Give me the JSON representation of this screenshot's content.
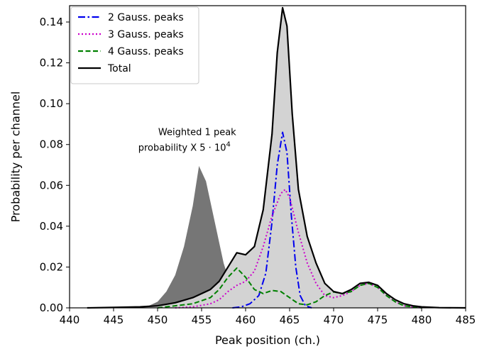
{
  "chart_data": {
    "type": "area",
    "title": "",
    "xlabel": "Peak position (ch.)",
    "ylabel": "Probability per channel",
    "xlim": [
      440,
      485
    ],
    "ylim": [
      0,
      0.148
    ],
    "xticks": [
      440,
      445,
      450,
      455,
      460,
      465,
      470,
      475,
      480,
      485
    ],
    "xtick_labels": [
      "440",
      "445",
      "450",
      "455",
      "460",
      "465",
      "470",
      "475",
      "480",
      "485"
    ],
    "yticks": [
      0.0,
      0.02,
      0.04,
      0.06,
      0.08,
      0.1,
      0.12,
      0.14
    ],
    "ytick_labels": [
      "0.00",
      "0.02",
      "0.04",
      "0.06",
      "0.08",
      "0.10",
      "0.12",
      "0.14"
    ],
    "grid": false,
    "legend_position": "top-left",
    "annotation": {
      "line1": "Weighted 1 peak",
      "line2_prefix": "probability X 5",
      "line2_suffix": "10",
      "line2_exponent": "4",
      "x": 454.5,
      "y": 0.077
    },
    "shaded_areas": [
      {
        "name": "",
        "color": "#767676",
        "x": [
          447,
          448,
          449,
          450,
          451,
          452,
          453,
          454,
          454.7,
          455.5,
          456.5,
          457.5,
          458.5,
          459.5,
          460.5
        ],
        "y": [
          0.0,
          0.0005,
          0.001,
          0.003,
          0.008,
          0.016,
          0.03,
          0.05,
          0.0695,
          0.062,
          0.042,
          0.022,
          0.008,
          0.002,
          0.0
        ]
      },
      {
        "name": "",
        "color": "#d3d3d3",
        "x": [
          442,
          445,
          448,
          450,
          452,
          454,
          456,
          457,
          458,
          459,
          460,
          461,
          462,
          463,
          463.6,
          464.2,
          464.7,
          465.3,
          466,
          467,
          468,
          469,
          470,
          471,
          472,
          473,
          474,
          475,
          476,
          477,
          478,
          479,
          480,
          482,
          485
        ],
        "y": [
          0.0,
          0.0002,
          0.0005,
          0.001,
          0.0025,
          0.005,
          0.009,
          0.013,
          0.02,
          0.027,
          0.026,
          0.03,
          0.048,
          0.085,
          0.125,
          0.147,
          0.138,
          0.095,
          0.058,
          0.035,
          0.022,
          0.012,
          0.008,
          0.007,
          0.009,
          0.012,
          0.0125,
          0.011,
          0.007,
          0.004,
          0.002,
          0.001,
          0.0005,
          0.0001,
          0.0
        ]
      }
    ],
    "series": [
      {
        "name": "2 Gauss. peaks",
        "color": "#0000ee",
        "dash": "dashdot",
        "x": [
          458.5,
          459.5,
          460.5,
          461.5,
          462.3,
          463,
          463.6,
          464.2,
          464.7,
          465.2,
          465.7,
          466.2,
          466.8,
          467.5
        ],
        "y": [
          0.0,
          0.0005,
          0.002,
          0.006,
          0.017,
          0.042,
          0.07,
          0.086,
          0.076,
          0.045,
          0.02,
          0.006,
          0.001,
          0.0
        ]
      },
      {
        "name": "3 Gauss. peaks",
        "color": "#cc00cc",
        "dash": "dotted",
        "x": [
          452,
          454,
          456,
          457,
          458,
          459,
          460,
          461,
          462,
          463,
          464,
          464.5,
          465,
          466,
          467,
          468,
          469,
          470,
          471,
          472,
          473,
          474,
          475,
          476,
          477,
          478,
          480
        ],
        "y": [
          0.0,
          0.0005,
          0.002,
          0.004,
          0.008,
          0.011,
          0.013,
          0.018,
          0.03,
          0.045,
          0.056,
          0.058,
          0.054,
          0.037,
          0.022,
          0.012,
          0.006,
          0.005,
          0.006,
          0.008,
          0.011,
          0.012,
          0.01,
          0.006,
          0.003,
          0.001,
          0.0
        ]
      },
      {
        "name": "4 Gauss. peaks",
        "color": "#008000",
        "dash": "dashed",
        "x": [
          450,
          452,
          454,
          456,
          457,
          458,
          459,
          460,
          461,
          462,
          463,
          464,
          465,
          466,
          467,
          468,
          469,
          470,
          471,
          472,
          473,
          474,
          475,
          476,
          477,
          478,
          480
        ],
        "y": [
          0.0,
          0.001,
          0.002,
          0.005,
          0.009,
          0.015,
          0.0195,
          0.015,
          0.009,
          0.007,
          0.0085,
          0.008,
          0.005,
          0.002,
          0.0015,
          0.003,
          0.006,
          0.0078,
          0.007,
          0.008,
          0.011,
          0.012,
          0.01,
          0.006,
          0.003,
          0.001,
          0.0
        ]
      },
      {
        "name": "Total",
        "color": "#000000",
        "dash": "solid",
        "x": [
          442,
          445,
          448,
          450,
          452,
          454,
          456,
          457,
          458,
          459,
          460,
          461,
          462,
          463,
          463.6,
          464.2,
          464.7,
          465.3,
          466,
          467,
          468,
          469,
          470,
          471,
          472,
          473,
          474,
          475,
          476,
          477,
          478,
          479,
          480,
          482,
          485
        ],
        "y": [
          0.0,
          0.0002,
          0.0005,
          0.001,
          0.0025,
          0.005,
          0.009,
          0.013,
          0.02,
          0.027,
          0.026,
          0.03,
          0.048,
          0.085,
          0.125,
          0.147,
          0.138,
          0.095,
          0.058,
          0.035,
          0.022,
          0.012,
          0.008,
          0.007,
          0.009,
          0.012,
          0.0125,
          0.011,
          0.007,
          0.004,
          0.002,
          0.001,
          0.0005,
          0.0001,
          0.0
        ]
      }
    ]
  }
}
